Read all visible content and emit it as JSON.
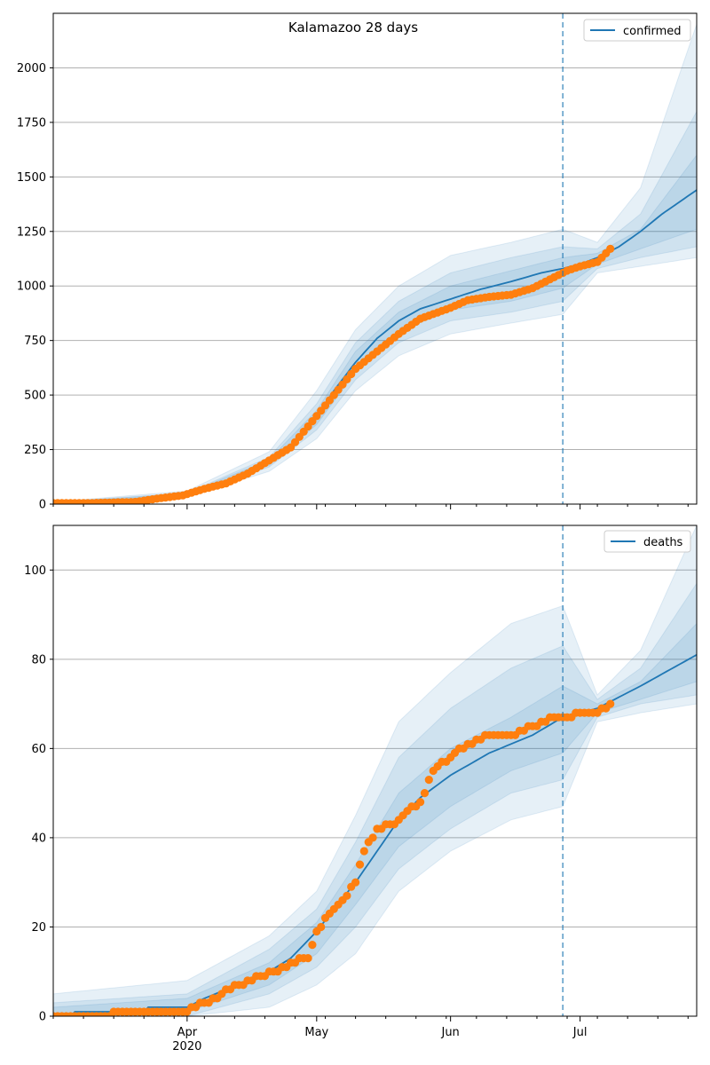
{
  "chart_data": [
    {
      "type": "line",
      "title": "Kalamazoo 28 days",
      "legend": {
        "label": "confirmed",
        "placement": "top-right"
      },
      "x_range": [
        "2020-03-01",
        "2020-07-28"
      ],
      "ylim": [
        0,
        2250
      ],
      "yticks": [
        0,
        250,
        500,
        750,
        1000,
        1250,
        1500,
        1750,
        2000
      ],
      "grid": "horizontal",
      "forecast_start": "2020-06-27",
      "model": {
        "name": "confirmed",
        "color": "#1f77b4",
        "x": [
          "2020-03-01",
          "2020-03-15",
          "2020-03-20",
          "2020-03-25",
          "2020-04-01",
          "2020-04-10",
          "2020-04-20",
          "2020-04-25",
          "2020-05-01",
          "2020-05-05",
          "2020-05-10",
          "2020-05-15",
          "2020-05-20",
          "2020-05-25",
          "2020-06-01",
          "2020-06-08",
          "2020-06-15",
          "2020-06-22",
          "2020-06-27",
          "2020-07-01",
          "2020-07-05",
          "2020-07-10",
          "2020-07-15",
          "2020-07-20",
          "2020-07-28"
        ],
        "y": [
          5,
          8,
          14,
          25,
          45,
          100,
          190,
          260,
          400,
          520,
          650,
          760,
          840,
          895,
          940,
          985,
          1020,
          1060,
          1080,
          1100,
          1130,
          1180,
          1250,
          1330,
          1440
        ]
      },
      "bands": [
        {
          "x": [
            "2020-03-01",
            "2020-04-01",
            "2020-04-20",
            "2020-05-01",
            "2020-05-10",
            "2020-05-20",
            "2020-06-01",
            "2020-06-15",
            "2020-06-27",
            "2020-07-05",
            "2020-07-15",
            "2020-07-28"
          ],
          "lower": [
            0,
            35,
            150,
            300,
            520,
            680,
            780,
            830,
            870,
            1060,
            1090,
            1130
          ],
          "upper": [
            10,
            60,
            240,
            520,
            800,
            1000,
            1140,
            1200,
            1260,
            1200,
            1450,
            2200
          ]
        },
        {
          "x": [
            "2020-03-01",
            "2020-04-01",
            "2020-04-20",
            "2020-05-01",
            "2020-05-10",
            "2020-05-20",
            "2020-06-01",
            "2020-06-15",
            "2020-06-27",
            "2020-07-05",
            "2020-07-15",
            "2020-07-28"
          ],
          "lower": [
            2,
            40,
            170,
            340,
            570,
            740,
            840,
            880,
            930,
            1080,
            1130,
            1180
          ],
          "upper": [
            8,
            52,
            215,
            460,
            740,
            930,
            1060,
            1130,
            1180,
            1170,
            1330,
            1800
          ]
        },
        {
          "x": [
            "2020-03-01",
            "2020-04-01",
            "2020-04-20",
            "2020-05-01",
            "2020-05-10",
            "2020-05-20",
            "2020-06-01",
            "2020-06-15",
            "2020-06-27",
            "2020-07-05",
            "2020-07-15",
            "2020-07-28"
          ],
          "lower": [
            3,
            42,
            178,
            365,
            605,
            790,
            890,
            930,
            990,
            1100,
            1170,
            1260
          ],
          "upper": [
            7,
            49,
            203,
            430,
            700,
            880,
            1000,
            1070,
            1130,
            1150,
            1260,
            1600
          ]
        }
      ],
      "observed": {
        "name": "observed confirmed",
        "color": "#ff7f0e",
        "x": [
          "2020-03-01",
          "2020-03-10",
          "2020-03-20",
          "2020-03-25",
          "2020-03-31",
          "2020-04-05",
          "2020-04-10",
          "2020-04-15",
          "2020-04-20",
          "2020-04-25",
          "2020-04-30",
          "2020-05-05",
          "2020-05-10",
          "2020-05-15",
          "2020-05-20",
          "2020-05-25",
          "2020-06-01",
          "2020-06-05",
          "2020-06-10",
          "2020-06-15",
          "2020-06-20",
          "2020-06-25",
          "2020-06-28",
          "2020-07-01",
          "2020-07-05",
          "2020-07-08"
        ],
        "y": [
          5,
          5,
          10,
          25,
          40,
          70,
          95,
          140,
          200,
          260,
          380,
          500,
          620,
          700,
          780,
          850,
          900,
          935,
          950,
          960,
          990,
          1040,
          1070,
          1090,
          1110,
          1170
        ]
      }
    },
    {
      "type": "line",
      "legend": {
        "label": "deaths",
        "placement": "top-right"
      },
      "x_range": [
        "2020-03-01",
        "2020-07-28"
      ],
      "ylim": [
        0,
        110
      ],
      "yticks": [
        0,
        20,
        40,
        60,
        80,
        100
      ],
      "xticks": [
        {
          "date": "2020-04-01",
          "label": "Apr",
          "sublabel": "2020"
        },
        {
          "date": "2020-05-01",
          "label": "May"
        },
        {
          "date": "2020-06-01",
          "label": "Jun"
        },
        {
          "date": "2020-07-01",
          "label": "Jul"
        }
      ],
      "grid": "horizontal",
      "forecast_start": "2020-06-27",
      "model": {
        "name": "deaths",
        "color": "#1f77b4",
        "x": [
          "2020-03-01",
          "2020-03-05",
          "2020-03-06",
          "2020-03-22",
          "2020-03-23",
          "2020-04-01",
          "2020-04-05",
          "2020-04-10",
          "2020-04-15",
          "2020-04-20",
          "2020-04-25",
          "2020-05-01",
          "2020-05-05",
          "2020-05-10",
          "2020-05-15",
          "2020-05-20",
          "2020-05-25",
          "2020-06-01",
          "2020-06-10",
          "2020-06-20",
          "2020-06-27",
          "2020-07-05",
          "2020-07-15",
          "2020-07-28"
        ],
        "y": [
          0,
          0,
          1,
          1,
          2,
          2,
          4,
          6,
          8,
          10,
          13,
          19,
          24,
          30,
          37,
          44,
          49,
          54,
          59,
          63,
          67,
          69,
          74,
          81
        ]
      },
      "bands": [
        {
          "x": [
            "2020-03-01",
            "2020-04-01",
            "2020-04-20",
            "2020-05-01",
            "2020-05-10",
            "2020-05-20",
            "2020-06-01",
            "2020-06-15",
            "2020-06-27",
            "2020-07-05",
            "2020-07-15",
            "2020-07-28"
          ],
          "lower": [
            0,
            0,
            2,
            7,
            14,
            28,
            37,
            44,
            47,
            66,
            68,
            70
          ],
          "upper": [
            5,
            8,
            18,
            28,
            45,
            66,
            77,
            88,
            92,
            72,
            82,
            110
          ]
        },
        {
          "x": [
            "2020-03-01",
            "2020-04-01",
            "2020-04-20",
            "2020-05-01",
            "2020-05-10",
            "2020-05-20",
            "2020-06-01",
            "2020-06-15",
            "2020-06-27",
            "2020-07-05",
            "2020-07-15",
            "2020-07-28"
          ],
          "lower": [
            0,
            0,
            5,
            11,
            20,
            33,
            42,
            50,
            53,
            67,
            70,
            72
          ],
          "upper": [
            3,
            5,
            15,
            24,
            39,
            58,
            69,
            78,
            83,
            71,
            78,
            97
          ]
        },
        {
          "x": [
            "2020-03-01",
            "2020-04-01",
            "2020-04-20",
            "2020-05-01",
            "2020-05-10",
            "2020-05-20",
            "2020-06-01",
            "2020-06-15",
            "2020-06-27",
            "2020-07-05",
            "2020-07-15",
            "2020-07-28"
          ],
          "lower": [
            0,
            1,
            7,
            14,
            25,
            38,
            47,
            55,
            59,
            68,
            71,
            75
          ],
          "upper": [
            2,
            4,
            12,
            21,
            34,
            50,
            60,
            67,
            74,
            70,
            75,
            88
          ]
        }
      ],
      "observed": {
        "name": "observed deaths",
        "color": "#ff7f0e",
        "x": [
          "2020-03-01",
          "2020-03-29",
          "2020-04-01",
          "2020-04-05",
          "2020-04-08",
          "2020-04-10",
          "2020-04-14",
          "2020-04-18",
          "2020-04-22",
          "2020-04-25",
          "2020-04-29",
          "2020-05-01",
          "2020-05-04",
          "2020-05-07",
          "2020-05-10",
          "2020-05-12",
          "2020-05-15",
          "2020-05-19",
          "2020-05-22",
          "2020-05-25",
          "2020-05-28",
          "2020-06-01",
          "2020-06-05",
          "2020-06-10",
          "2020-06-15",
          "2020-06-20",
          "2020-06-25",
          "2020-06-28",
          "2020-07-01",
          "2020-07-05",
          "2020-07-08"
        ],
        "y": [
          0,
          1,
          1,
          3,
          4,
          6,
          7,
          9,
          10,
          12,
          13,
          19,
          23,
          26,
          30,
          37,
          42,
          43,
          46,
          48,
          55,
          58,
          61,
          63,
          63,
          65,
          67,
          67,
          68,
          68,
          70
        ]
      }
    }
  ]
}
